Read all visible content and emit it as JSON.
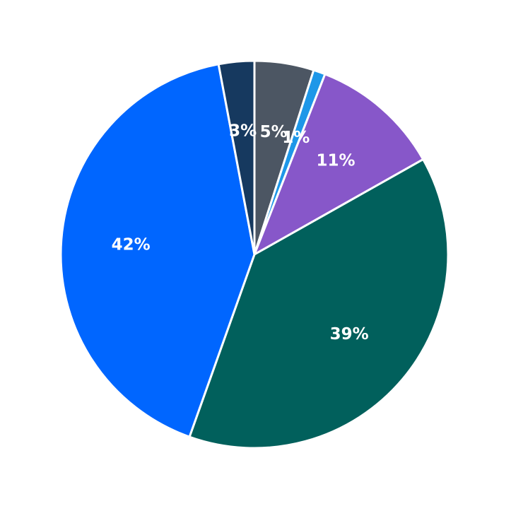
{
  "chart_data": {
    "type": "pie",
    "title": "",
    "legend": "none",
    "background": "#FFFFFF",
    "start_angle_deg": 90,
    "direction": "clockwise",
    "label_color": "#FFFFFF",
    "label_distance": 0.64,
    "stroke_color": "#FFFFFF",
    "stroke_width": 3,
    "slices": [
      {
        "name": "slate-gray",
        "label": "5%",
        "value": 5,
        "color": "#4C5663"
      },
      {
        "name": "light-blue",
        "label": "1%",
        "value": 1,
        "color": "#1E97E8"
      },
      {
        "name": "purple",
        "label": "11%",
        "value": 11,
        "color": "#8757C9"
      },
      {
        "name": "teal",
        "label": "39%",
        "value": 39,
        "color": "#01605C"
      },
      {
        "name": "blue",
        "label": "42%",
        "value": 42,
        "color": "#0066FF"
      },
      {
        "name": "navy",
        "label": "3%",
        "value": 3,
        "color": "#16395F"
      }
    ]
  }
}
